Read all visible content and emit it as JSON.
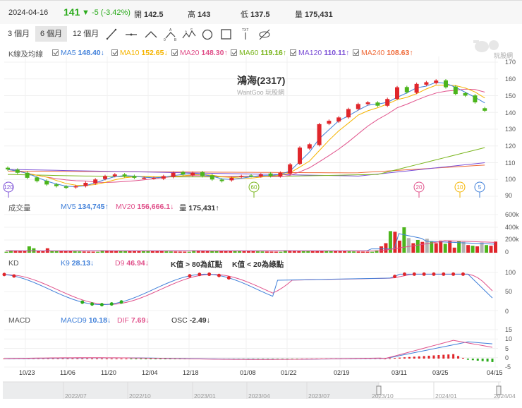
{
  "header": {
    "date": "2024-04-16",
    "price": "141",
    "change": "▼ -5 (-3.42%)",
    "open_label": "開",
    "open": "142.5",
    "high_label": "高",
    "high": "143",
    "low_label": "低",
    "low": "137.5",
    "volume_label": "量",
    "volume": "175,431"
  },
  "toolbar": {
    "ranges": [
      "3 個月",
      "6 個月",
      "12 個月"
    ],
    "active_range": "6 個月",
    "tools": [
      "line-tool",
      "horizontal-line-tool",
      "angle-tool",
      "abc-pattern-tool",
      "abcd-pattern-tool",
      "circle-tool",
      "rectangle-tool",
      "text-tool",
      "hide-drawings-tool"
    ]
  },
  "kline_legend": {
    "label": "K線及均線",
    "ma": [
      {
        "name": "MA5",
        "value": "148.40",
        "arrow": "↓",
        "color": "#3f7fd9"
      },
      {
        "name": "MA10",
        "value": "152.65",
        "arrow": "↓",
        "color": "#f5b400"
      },
      {
        "name": "MA20",
        "value": "148.30",
        "arrow": "↑",
        "color": "#e0508a"
      },
      {
        "name": "MA60",
        "value": "119.16",
        "arrow": "↑",
        "color": "#7ab51d"
      },
      {
        "name": "MA120",
        "value": "110.11",
        "arrow": "↑",
        "color": "#7b4fd6"
      },
      {
        "name": "MA240",
        "value": "108.63",
        "arrow": "↑",
        "color": "#ef6b3a"
      }
    ]
  },
  "chart_title": "鴻海(2317)",
  "chart_subtitle": "WantGoo 玩股網",
  "watermark": "玩股網",
  "volume_legend": {
    "label": "成交量",
    "mv5_name": "MV5",
    "mv5": "134,745",
    "mv5_arrow": "↑",
    "mv20_name": "MV20",
    "mv20": "156,666.1",
    "mv20_arrow": "↓",
    "vol_name": "量",
    "vol": "175,431",
    "vol_arrow": "↑"
  },
  "kd_legend": {
    "label": "KD",
    "k_name": "K9",
    "k": "28.13",
    "k_arrow": "↓",
    "d_name": "D9",
    "d": "46.94",
    "d_arrow": "↓",
    "note1": "K值 > 80為紅點",
    "note2": "K值 < 20為綠點"
  },
  "macd_legend": {
    "label": "MACD",
    "macd_name": "MACD9",
    "macd": "10.18",
    "macd_arrow": "↓",
    "dif_name": "DIF",
    "dif": "7.69",
    "dif_arrow": "↓",
    "osc_name": "OSC",
    "osc": "-2.49",
    "osc_arrow": "↓"
  },
  "navigator": {
    "labels": [
      "2022/07",
      "2022/10",
      "2023/01",
      "2023/04",
      "2023/07",
      "2023/10",
      "2024/01",
      "2024/04"
    ]
  },
  "chart_data": [
    {
      "type": "candlestick",
      "title": "鴻海(2317)",
      "x_ticks": [
        "10/23",
        "11/06",
        "11/20",
        "12/04",
        "12/18",
        "01/08",
        "01/22",
        "02/19",
        "03/11",
        "03/25",
        "04/15"
      ],
      "y_ticks": [
        90,
        100,
        110,
        120,
        130,
        140,
        150,
        160,
        170
      ],
      "ylim": [
        90,
        170
      ],
      "last_candle": {
        "open": 142.5,
        "high": 143,
        "low": 137.5,
        "close": 141
      },
      "approx_close": [
        106,
        104,
        101,
        99,
        97,
        96,
        95,
        96,
        98,
        100,
        102,
        103,
        102,
        101,
        101,
        101,
        102,
        104,
        103,
        104,
        102,
        100,
        99,
        101,
        102,
        102,
        103,
        102,
        104,
        109,
        119,
        121,
        133,
        135,
        137,
        142,
        145,
        146,
        144,
        148,
        155,
        152,
        157,
        158,
        159,
        155,
        151,
        150,
        146,
        141
      ],
      "series": [
        {
          "name": "MA5",
          "last": 148.4
        },
        {
          "name": "MA10",
          "last": 152.65
        },
        {
          "name": "MA20",
          "last": 148.3
        },
        {
          "name": "MA60",
          "last": 119.16
        },
        {
          "name": "MA120",
          "last": 110.11
        },
        {
          "name": "MA240",
          "last": 108.63
        }
      ],
      "markers": [
        {
          "label": "120",
          "x": "10/16"
        },
        {
          "label": "60",
          "x": "01/12"
        },
        {
          "label": "20",
          "x": "03/15"
        },
        {
          "label": "10",
          "x": "03/29"
        },
        {
          "label": "5",
          "x": "04/09"
        }
      ]
    },
    {
      "type": "bar",
      "title": "成交量",
      "y_ticks": [
        "0",
        "200k",
        "400k",
        "600k"
      ],
      "ylim": [
        0,
        600000
      ],
      "last": 175431,
      "series": [
        {
          "name": "MV5",
          "last": 134745
        },
        {
          "name": "MV20",
          "last": 156666.1
        }
      ],
      "approx_recent": [
        100000,
        150000,
        340000,
        330000,
        190000,
        400000,
        230000,
        150000,
        200000,
        170000,
        220000,
        180000,
        150000,
        190000,
        140000,
        190000,
        80000,
        180000,
        170000,
        120000,
        110000,
        100000,
        160000,
        120000,
        110000,
        175431
      ]
    },
    {
      "type": "line",
      "title": "KD",
      "y_ticks": [
        0,
        50,
        100
      ],
      "ylim": [
        0,
        100
      ],
      "series": [
        {
          "name": "K9",
          "last": 28.13
        },
        {
          "name": "D9",
          "last": 46.94
        }
      ]
    },
    {
      "type": "line",
      "title": "MACD",
      "y_ticks": [
        -5,
        0,
        5,
        10,
        15
      ],
      "ylim": [
        -5,
        15
      ],
      "series": [
        {
          "name": "MACD9",
          "last": 10.18
        },
        {
          "name": "DIF",
          "last": 7.69
        },
        {
          "name": "OSC",
          "last": -2.49
        }
      ]
    }
  ]
}
